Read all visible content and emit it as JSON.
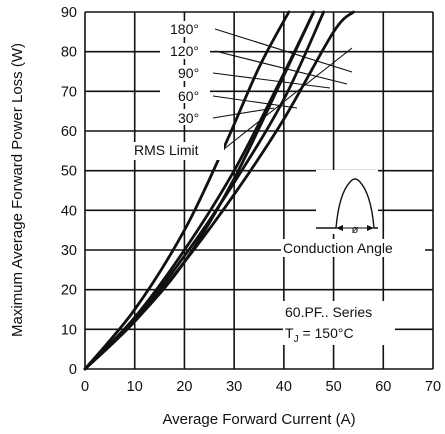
{
  "chart_data": {
    "type": "line",
    "xlabel": "Average Forward Current (A)",
    "ylabel": "Maximum Average Forward Power Loss (W)",
    "xlim": [
      0,
      70
    ],
    "ylim": [
      0,
      90
    ],
    "x_ticks": [
      0,
      10,
      20,
      30,
      40,
      50,
      60,
      70
    ],
    "y_ticks": [
      0,
      10,
      20,
      30,
      40,
      50,
      60,
      70,
      80,
      90
    ],
    "grid": true,
    "series": [
      {
        "name": "180°",
        "points": [
          [
            0,
            0
          ],
          [
            10,
            12
          ],
          [
            20,
            27
          ],
          [
            30,
            44
          ],
          [
            40,
            63
          ],
          [
            50,
            85
          ],
          [
            54,
            90
          ]
        ]
      },
      {
        "name": "120°",
        "points": [
          [
            0,
            0
          ],
          [
            10,
            12.5
          ],
          [
            20,
            28.5
          ],
          [
            30,
            47
          ],
          [
            40,
            68
          ],
          [
            48,
            90
          ]
        ]
      },
      {
        "name": "90°",
        "points": [
          [
            0,
            0
          ],
          [
            10,
            13
          ],
          [
            20,
            30
          ],
          [
            30,
            50
          ],
          [
            39,
            72
          ],
          [
            46,
            90
          ]
        ]
      },
      {
        "name": "60°",
        "points": [
          [
            0,
            0
          ],
          [
            10,
            15
          ],
          [
            20,
            35
          ],
          [
            28,
            56
          ],
          [
            35,
            76
          ],
          [
            41,
            90
          ]
        ]
      },
      {
        "name": "30°",
        "points": [
          [
            0,
            0
          ],
          [
            10,
            12
          ],
          [
            20,
            27
          ],
          [
            30,
            48
          ],
          [
            40,
            74
          ],
          [
            46,
            90
          ]
        ]
      }
    ],
    "annotations": {
      "rms_limit": "RMS Limit",
      "conduction_angle": "Conduction Angle",
      "phi_symbol": "ø",
      "series_label": "60.PF.. Series",
      "temp_prefix": "T",
      "temp_sub": "J",
      "temp_value": " = 150°C"
    }
  }
}
